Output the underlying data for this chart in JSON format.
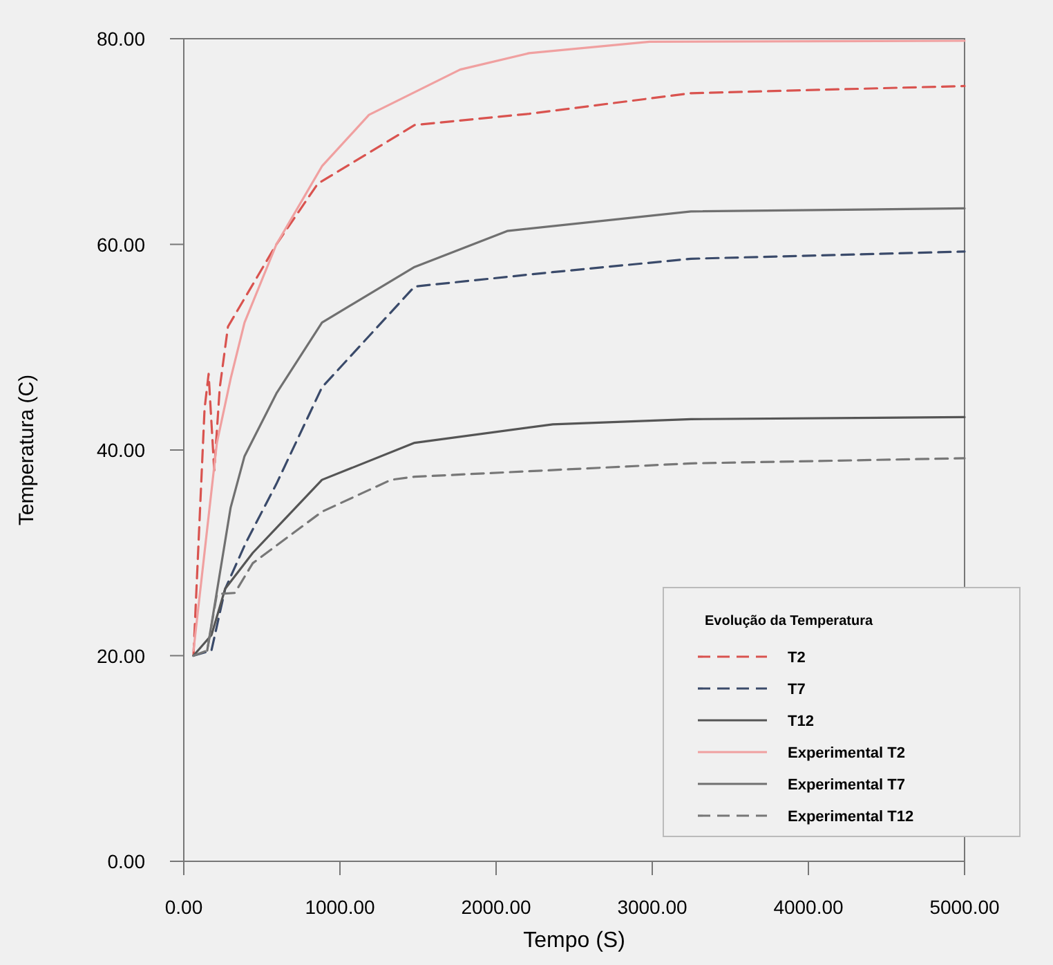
{
  "chart_data": {
    "type": "line",
    "xlabel": "Tempo (S)",
    "ylabel": "Temperatura (C)",
    "legend_title": "Evolução da Temperatura",
    "xlim": [
      0,
      5000
    ],
    "ylim": [
      0,
      80
    ],
    "xticks": [
      {
        "value": 0,
        "label": "0.00"
      },
      {
        "value": 1000,
        "label": "1000.00"
      },
      {
        "value": 2000,
        "label": "2000.00"
      },
      {
        "value": 3000,
        "label": "3000.00"
      },
      {
        "value": 4000,
        "label": "4000.00"
      },
      {
        "value": 5000,
        "label": "5000.00"
      }
    ],
    "yticks": [
      {
        "value": 0,
        "label": "0.00"
      },
      {
        "value": 20,
        "label": "20.00"
      },
      {
        "value": 40,
        "label": "40.00"
      },
      {
        "value": 60,
        "label": "60.00"
      },
      {
        "value": 80,
        "label": "80.00"
      }
    ],
    "grid": false,
    "legend": "bottom right",
    "marker": "none",
    "series": [
      {
        "name": "T2",
        "color": "#d9534f",
        "line_style": "dashed",
        "x": [
          62,
          133,
          159,
          195,
          230,
          283,
          593,
          858,
          1478,
          2212,
          3248,
          5000
        ],
        "values": [
          20,
          44,
          47.4,
          38,
          46,
          52,
          60,
          65.9,
          71.6,
          72.7,
          74.7,
          75.4
        ]
      },
      {
        "name": "T7",
        "color": "#3a4a6a",
        "line_style": "dashed",
        "x": [
          62,
          177,
          265,
          398,
          593,
          885,
          1478,
          2363,
          3248,
          5000
        ],
        "values": [
          20,
          20.5,
          26.5,
          31,
          36.7,
          46.1,
          55.9,
          57.3,
          58.6,
          59.3
        ]
      },
      {
        "name": "T12",
        "color": "#555555",
        "line_style": "solid",
        "x": [
          62,
          177,
          265,
          442,
          885,
          1478,
          2363,
          3248,
          5000
        ],
        "values": [
          20,
          22,
          26.5,
          30,
          37.1,
          40.7,
          42.5,
          43,
          43.2
        ]
      },
      {
        "name": "Experimental T2",
        "color": "#f0a0a0",
        "line_style": "solid",
        "x": [
          62,
          212,
          301,
          389,
          593,
          885,
          1186,
          1770,
          2212,
          2982,
          5000
        ],
        "values": [
          20.5,
          40.7,
          47,
          52.4,
          60,
          67.6,
          72.6,
          77,
          78.6,
          79.7,
          79.8
        ]
      },
      {
        "name": "Experimental T7",
        "color": "#707070",
        "line_style": "solid",
        "x": [
          150,
          300,
          389,
          593,
          885,
          1478,
          2071,
          3248,
          5000
        ],
        "values": [
          20.5,
          34.4,
          39.4,
          45.5,
          52.4,
          57.8,
          61.3,
          63.2,
          63.5
        ]
      },
      {
        "name": "Experimental T12",
        "color": "#777777",
        "line_style": "dashed",
        "x": [
          62,
          150,
          212,
          327,
          442,
          885,
          1327,
          1478,
          3248,
          5000
        ],
        "values": [
          20,
          20.5,
          26,
          26.1,
          29,
          34,
          37.1,
          37.4,
          38.7,
          39.2
        ]
      }
    ]
  }
}
